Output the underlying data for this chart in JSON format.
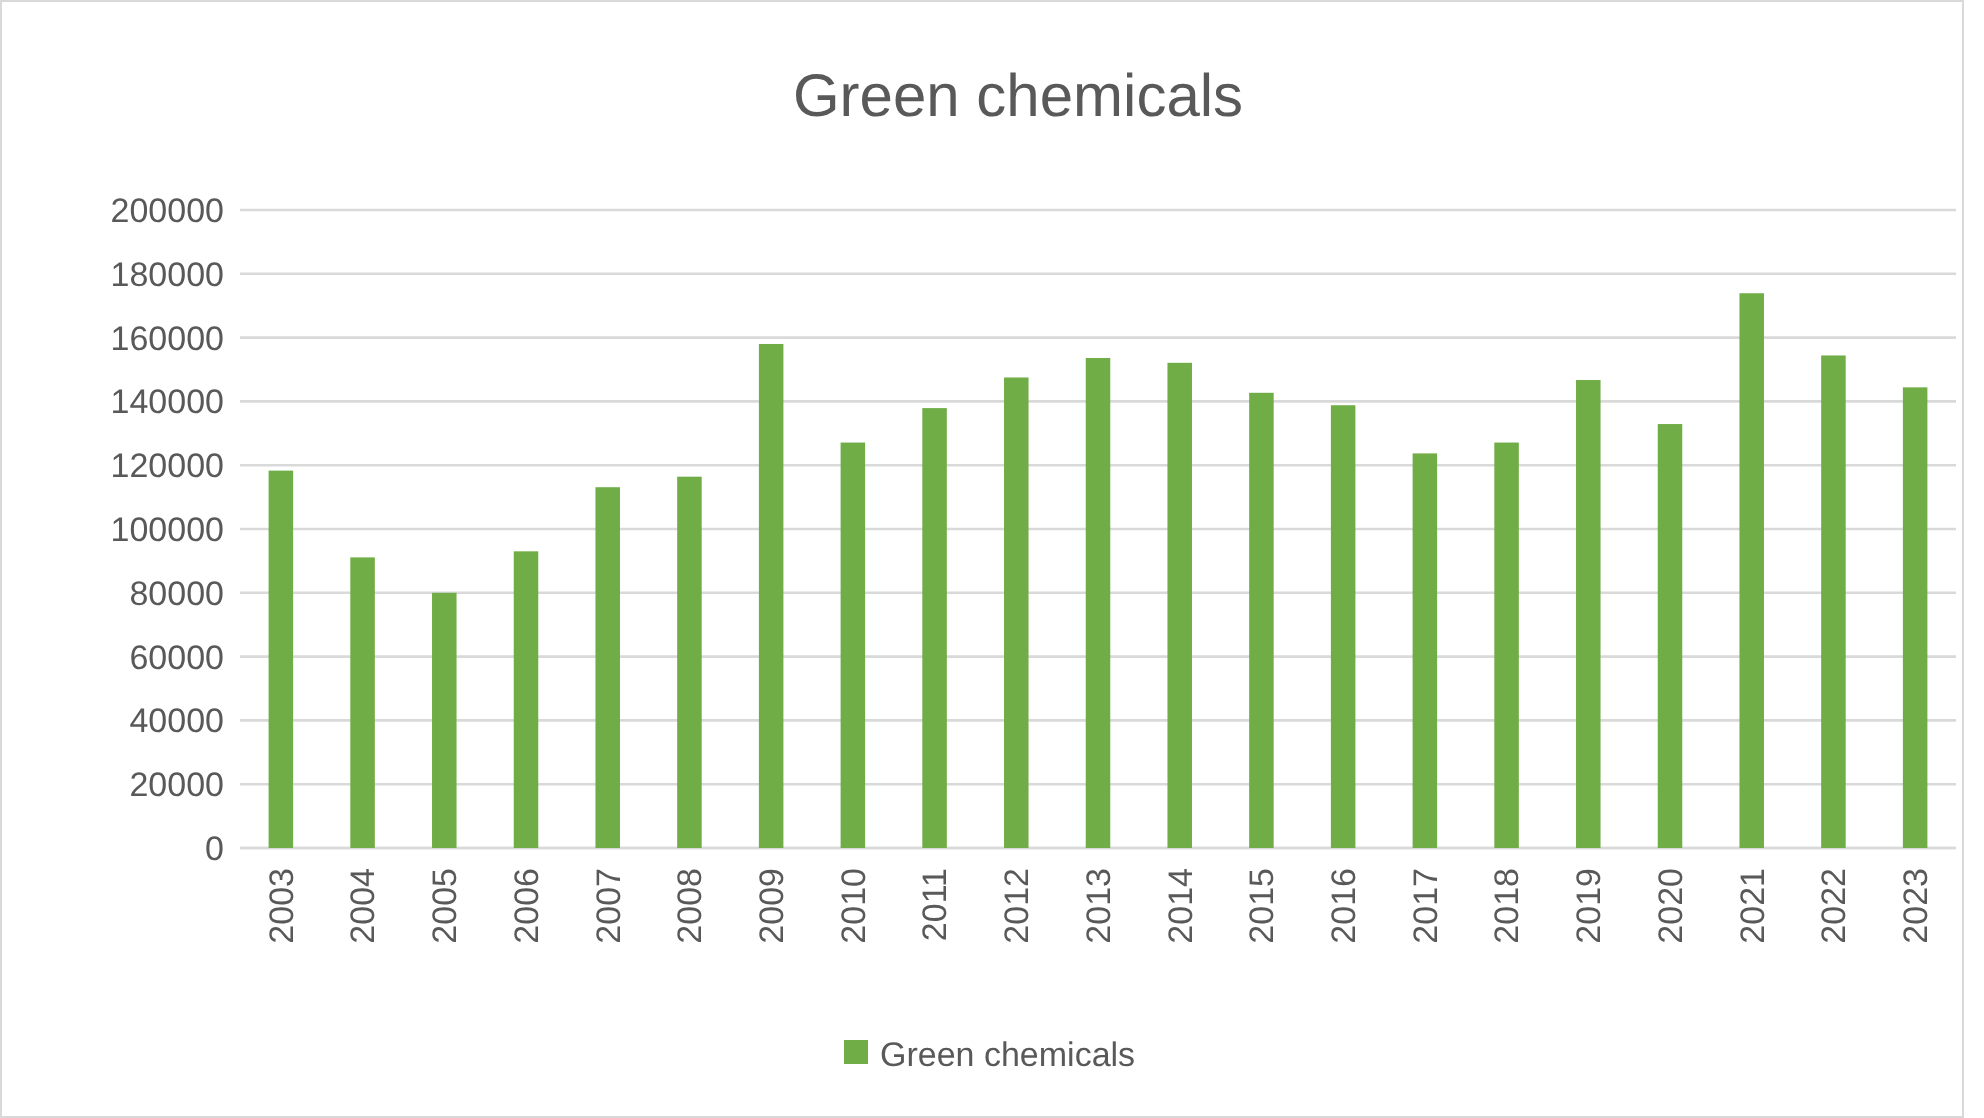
{
  "chart_data": {
    "type": "bar",
    "title": "Green chemicals",
    "categories": [
      "2003",
      "2004",
      "2005",
      "2006",
      "2007",
      "2008",
      "2009",
      "2010",
      "2011",
      "2012",
      "2013",
      "2014",
      "2015",
      "2016",
      "2017",
      "2018",
      "2019",
      "2020",
      "2021",
      "2022",
      "2023"
    ],
    "series": [
      {
        "name": "Green chemicals",
        "color": "#70ad47",
        "values": [
          118300,
          91100,
          80000,
          93000,
          113100,
          116400,
          158000,
          127100,
          137900,
          147500,
          153600,
          152100,
          142700,
          138800,
          123700,
          127100,
          146700,
          132900,
          173900,
          154400,
          144400
        ]
      }
    ],
    "ylim": [
      0,
      200000
    ],
    "yticks": [
      0,
      20000,
      40000,
      60000,
      80000,
      100000,
      120000,
      140000,
      160000,
      180000,
      200000
    ],
    "grid": "y",
    "legend": "bottom"
  }
}
